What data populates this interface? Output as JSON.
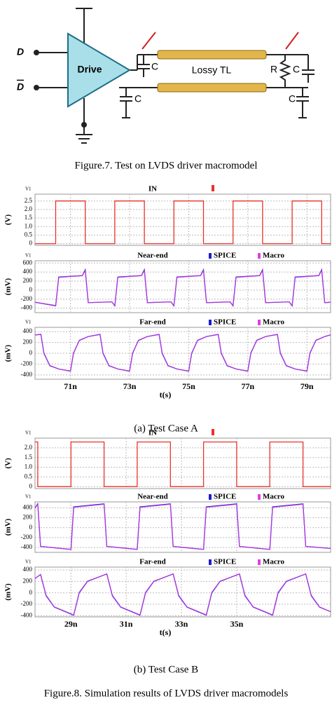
{
  "figure7": {
    "input_d": "D",
    "input_d_bar": "D",
    "driver": "Drive",
    "caps": [
      "C",
      "C",
      "C",
      "C"
    ],
    "line": "Lossy TL",
    "resistor": "R",
    "caption": "Figure.7. Test on LVDS driver macromodel"
  },
  "chart_data": [
    {
      "type": "line",
      "title": "IN",
      "corner_label": "V1",
      "y_label": "(V)",
      "xlim": [
        69.8,
        79.8
      ],
      "ylim": [
        -0.1,
        2.9
      ],
      "yticks": [
        0,
        {
          "value": 0.5,
          "label": "0.5"
        },
        {
          "value": 1,
          "label": "1.0"
        },
        {
          "value": 1.5,
          "label": "1.5"
        },
        {
          "value": 2,
          "label": "2.0"
        },
        {
          "value": 2.5,
          "label": "2.5"
        }
      ],
      "grid": true,
      "x": [
        69.8,
        70.5,
        70.5,
        71.5,
        71.5,
        72.5,
        72.5,
        73.5,
        73.5,
        74.5,
        74.5,
        75.5,
        75.5,
        76.5,
        76.5,
        77.5,
        77.5,
        78.5,
        78.5,
        79.5,
        79.5,
        79.8
      ],
      "series": [
        {
          "color": "#e8322b",
          "values": [
            0,
            0,
            2.5,
            2.5,
            0,
            0,
            2.5,
            2.5,
            0,
            0,
            2.5,
            2.5,
            0,
            0,
            2.5,
            2.5,
            0,
            0,
            2.5,
            2.5,
            0,
            0
          ]
        }
      ]
    },
    {
      "type": "line",
      "title": "Near-end",
      "corner_label": "V1",
      "y_label": "(mV)",
      "xlim": [
        69.8,
        79.8
      ],
      "ylim": [
        -500,
        650
      ],
      "yticks": [
        -400,
        -200,
        0,
        200,
        400,
        600
      ],
      "grid": true,
      "x": [
        69.8,
        70.5,
        70.6,
        71.4,
        71.5,
        71.6,
        72.4,
        72.5,
        72.6,
        73.4,
        73.5,
        73.6,
        74.4,
        74.5,
        74.6,
        75.4,
        75.5,
        75.6,
        76.4,
        76.5,
        76.6,
        77.4,
        77.5,
        77.6,
        78.4,
        78.5,
        78.6,
        79.4,
        79.5,
        79.6,
        79.8
      ],
      "series": [
        {
          "name": "SPICE",
          "color": "#1c1cd6",
          "values": [
            -270,
            -350,
            290,
            320,
            450,
            -280,
            -260,
            -350,
            290,
            320,
            450,
            -280,
            -260,
            -350,
            290,
            320,
            450,
            -280,
            -260,
            -350,
            290,
            320,
            450,
            -280,
            -260,
            -350,
            290,
            320,
            450,
            -280,
            -270
          ]
        },
        {
          "name": "Macro",
          "color": "#e040e0",
          "values": [
            -270,
            -340,
            280,
            320,
            430,
            -280,
            -260,
            -340,
            280,
            320,
            430,
            -280,
            -260,
            -340,
            280,
            320,
            430,
            -280,
            -260,
            -340,
            280,
            320,
            430,
            -280,
            -260,
            -340,
            280,
            320,
            430,
            -280,
            -270
          ]
        }
      ]
    },
    {
      "type": "line",
      "title": "Far-end",
      "corner_label": "V1",
      "y_label": "(mV)",
      "x_label": "t(s)",
      "xlim": [
        69.8,
        79.8
      ],
      "ylim": [
        -480,
        480
      ],
      "yticks": [
        -400,
        -200,
        0,
        200,
        400
      ],
      "grid": true,
      "xticks": [
        {
          "value": 71,
          "label": "71n"
        },
        {
          "value": 73,
          "label": "73n"
        },
        {
          "value": 75,
          "label": "75n"
        },
        {
          "value": 77,
          "label": "77n"
        },
        {
          "value": 79,
          "label": "79n"
        }
      ],
      "x": [
        69.8,
        70,
        70.1,
        70.3,
        70.6,
        71,
        71.1,
        71.3,
        71.6,
        72,
        72.1,
        72.3,
        72.6,
        73,
        73.1,
        73.3,
        73.6,
        74,
        74.1,
        74.3,
        74.6,
        75,
        75.1,
        75.3,
        75.6,
        76,
        76.1,
        76.3,
        76.6,
        77,
        77.1,
        77.3,
        77.6,
        78,
        78.1,
        78.3,
        78.6,
        79,
        79.1,
        79.3,
        79.6,
        79.8
      ],
      "series": [
        {
          "name": "SPICE",
          "color": "#1c1cd6",
          "values": [
            340,
            350,
            0,
            -230,
            -290,
            -330,
            0,
            240,
            310,
            350,
            0,
            -230,
            -290,
            -330,
            0,
            240,
            310,
            350,
            0,
            -230,
            -290,
            -330,
            0,
            240,
            310,
            350,
            0,
            -230,
            -290,
            -330,
            0,
            240,
            310,
            350,
            0,
            -230,
            -290,
            -330,
            0,
            240,
            310,
            340
          ]
        },
        {
          "name": "Macro",
          "color": "#e040e0",
          "values": [
            340,
            345,
            10,
            -225,
            -290,
            -335,
            10,
            235,
            310,
            345,
            10,
            -225,
            -290,
            -335,
            10,
            235,
            310,
            345,
            10,
            -225,
            -290,
            -335,
            10,
            235,
            310,
            345,
            10,
            -225,
            -290,
            -335,
            10,
            235,
            310,
            345,
            10,
            -225,
            -290,
            -335,
            10,
            235,
            310,
            340
          ]
        }
      ]
    },
    {
      "type": "line",
      "title": "IN",
      "corner_label": "V1",
      "y_label": "(V)",
      "xlim": [
        27.7,
        38.4
      ],
      "ylim": [
        -0.1,
        2.5
      ],
      "yticks": [
        0,
        {
          "value": 0.5,
          "label": "0.5"
        },
        {
          "value": 1,
          "label": "1.0"
        },
        {
          "value": 1.5,
          "label": "1.5"
        },
        {
          "value": 2,
          "label": "2.0"
        }
      ],
      "grid": true,
      "x": [
        27.7,
        27.8,
        27.8,
        29.0,
        29.0,
        30.2,
        30.2,
        31.4,
        31.4,
        32.6,
        32.6,
        33.8,
        33.8,
        35.0,
        35.0,
        36.2,
        36.2,
        37.4,
        37.4,
        38.4
      ],
      "series": [
        {
          "color": "#e8322b",
          "values": [
            2.3,
            2.3,
            0,
            0,
            2.3,
            2.3,
            0,
            0,
            2.3,
            2.3,
            0,
            0,
            2.3,
            2.3,
            0,
            0,
            2.3,
            2.3,
            0,
            0
          ]
        }
      ]
    },
    {
      "type": "line",
      "title": "Near-end",
      "corner_label": "V1",
      "y_label": "(mV)",
      "xlim": [
        27.7,
        38.4
      ],
      "ylim": [
        -500,
        520
      ],
      "yticks": [
        -400,
        -200,
        0,
        200,
        400
      ],
      "grid": true,
      "x": [
        27.7,
        27.8,
        27.9,
        29.0,
        29.1,
        30.2,
        30.3,
        31.4,
        31.5,
        32.6,
        32.7,
        33.8,
        33.9,
        35.0,
        35.1,
        36.2,
        36.3,
        37.4,
        37.5,
        38.4
      ],
      "series": [
        {
          "name": "SPICE",
          "color": "#1c1cd6",
          "values": [
            400,
            480,
            -380,
            -440,
            420,
            480,
            -380,
            -440,
            420,
            480,
            -380,
            -440,
            420,
            480,
            -380,
            -440,
            420,
            480,
            -380,
            -420
          ]
        },
        {
          "name": "Macro",
          "color": "#e040e0",
          "values": [
            400,
            470,
            -380,
            -440,
            410,
            470,
            -380,
            -440,
            410,
            470,
            -380,
            -440,
            410,
            470,
            -380,
            -440,
            410,
            470,
            -380,
            -420
          ]
        }
      ]
    },
    {
      "type": "line",
      "title": "Far-end",
      "corner_label": "V1",
      "y_label": "(mV)",
      "x_label": "t(s)",
      "xlim": [
        27.7,
        38.4
      ],
      "ylim": [
        -420,
        450
      ],
      "yticks": [
        -400,
        -200,
        0,
        200,
        400
      ],
      "grid": true,
      "xticks": [
        {
          "value": 29,
          "label": "29n"
        },
        {
          "value": 31,
          "label": "31n"
        },
        {
          "value": 33,
          "label": "33n"
        },
        {
          "value": 35,
          "label": "35n"
        }
      ],
      "x": [
        27.7,
        27.9,
        28.1,
        28.4,
        29.1,
        29.3,
        29.6,
        30.3,
        30.5,
        30.8,
        31.5,
        31.7,
        32.0,
        32.7,
        32.9,
        33.2,
        33.9,
        34.1,
        34.4,
        35.1,
        35.3,
        35.6,
        36.3,
        36.5,
        36.8,
        37.5,
        37.7,
        38.0,
        38.4
      ],
      "series": [
        {
          "name": "SPICE",
          "color": "#1c1cd6",
          "values": [
            250,
            320,
            -50,
            -250,
            -390,
            0,
            200,
            330,
            -50,
            -250,
            -390,
            0,
            200,
            330,
            -50,
            -250,
            -390,
            0,
            200,
            330,
            -50,
            -250,
            -390,
            0,
            200,
            330,
            -50,
            -250,
            -330
          ]
        },
        {
          "name": "Macro",
          "color": "#e040e0",
          "values": [
            250,
            320,
            -40,
            -245,
            -385,
            10,
            205,
            330,
            -40,
            -245,
            -385,
            10,
            205,
            330,
            -40,
            -245,
            -385,
            10,
            205,
            330,
            -40,
            -245,
            -385,
            10,
            205,
            330,
            -40,
            -245,
            -330
          ]
        }
      ]
    }
  ],
  "case_a_caption": "(a) Test Case A",
  "case_b_caption": "(b) Test Case B",
  "figure8_caption": "Figure.8. Simulation results of LVDS driver macromodels"
}
